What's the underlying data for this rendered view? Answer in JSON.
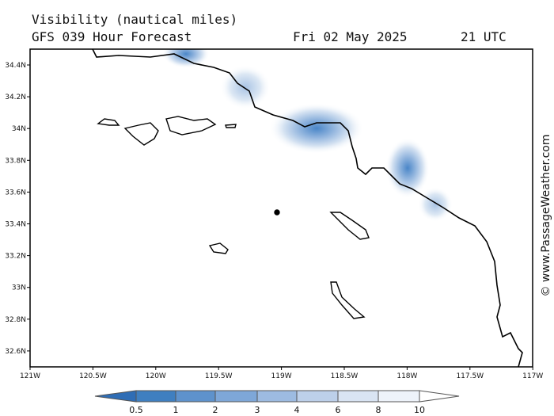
{
  "header": {
    "title": "Visibility (nautical miles)",
    "subtitle": "GFS 039 Hour Forecast",
    "date": "Fri 02 May 2025",
    "time": "21 UTC"
  },
  "map": {
    "lat_ticks": [
      "34.4N",
      "34.2N",
      "34N",
      "33.8N",
      "33.6N",
      "33.4N",
      "33.2N",
      "33N",
      "32.8N",
      "32.6N"
    ],
    "lon_ticks": [
      "121W",
      "120.5W",
      "120W",
      "119.5W",
      "119W",
      "118.5W",
      "118W",
      "117.5W",
      "117W"
    ]
  },
  "legend": {
    "levels": [
      0.5,
      1,
      2,
      3,
      4,
      6,
      8,
      10
    ]
  },
  "credit": "© www.PassageWeather.com"
}
